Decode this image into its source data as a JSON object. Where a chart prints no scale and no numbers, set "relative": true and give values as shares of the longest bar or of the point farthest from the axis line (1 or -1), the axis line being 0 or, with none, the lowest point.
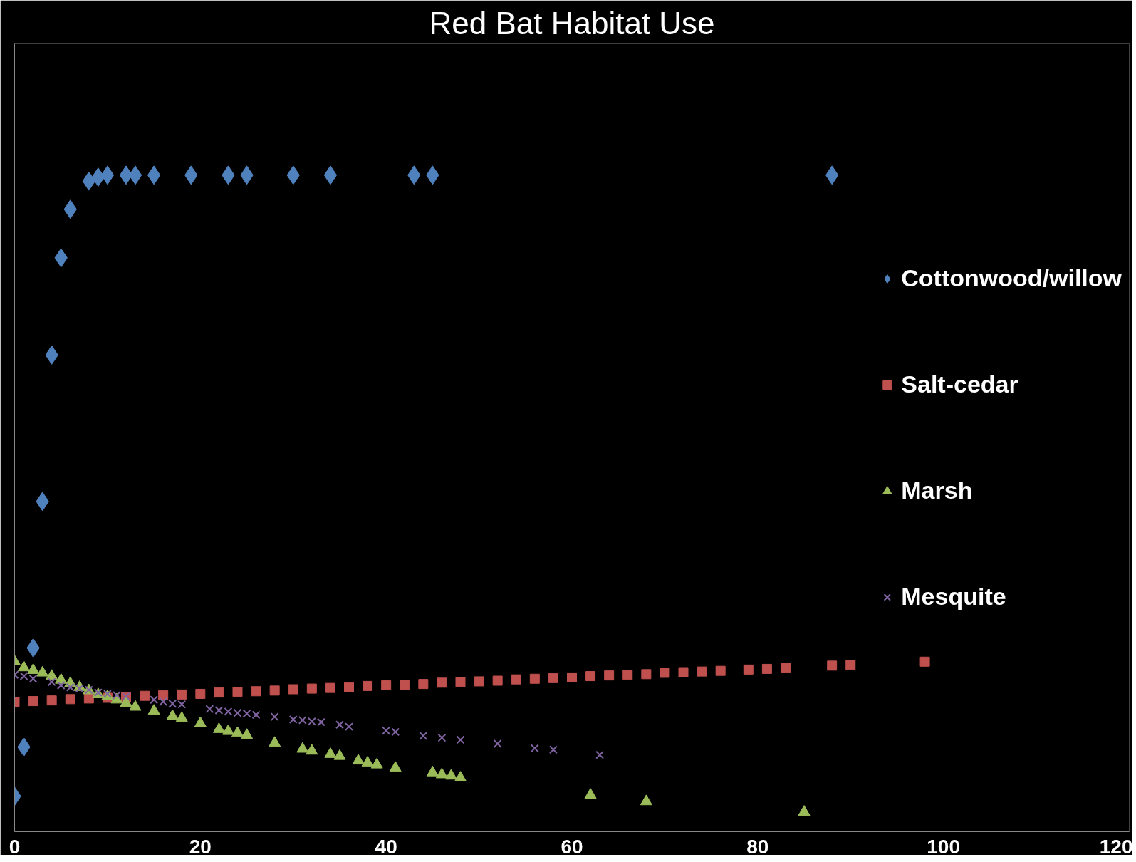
{
  "chart_data": {
    "type": "scatter",
    "title": "Red Bat Habitat Use",
    "relative": true,
    "xlim": [
      0,
      120
    ],
    "xticks": [
      0,
      20,
      40,
      60,
      80,
      100,
      120
    ],
    "tick_labels": "x",
    "grid": false,
    "legend": "right",
    "series": [
      {
        "name": "Cottonwood/willow",
        "color": "#4f81bd",
        "marker": "diamond",
        "x": [
          0,
          1,
          2,
          3,
          4,
          5,
          6,
          8,
          9,
          10,
          12,
          13,
          15,
          19,
          23,
          25,
          30,
          34,
          43,
          45,
          88
        ],
        "values": [
          0.054,
          0.129,
          0.28,
          0.503,
          0.726,
          0.874,
          0.948,
          0.991,
          0.997,
          1,
          1,
          1,
          1,
          1,
          1,
          1,
          1,
          1,
          1,
          1,
          1
        ]
      },
      {
        "name": "Salt-cedar",
        "color": "#c0504d",
        "marker": "square",
        "x": [
          0,
          2,
          4,
          6,
          8,
          10,
          12,
          14,
          16,
          18,
          20,
          22,
          24,
          26,
          28,
          30,
          32,
          34,
          36,
          38,
          40,
          42,
          44,
          46,
          48,
          50,
          52,
          54,
          56,
          58,
          60,
          62,
          64,
          66,
          68,
          70,
          72,
          74,
          76,
          79,
          81,
          83,
          88,
          90,
          98
        ],
        "values": [
          0.198,
          0.199,
          0.2,
          0.202,
          0.203,
          0.204,
          0.205,
          0.207,
          0.208,
          0.209,
          0.21,
          0.212,
          0.213,
          0.214,
          0.215,
          0.217,
          0.218,
          0.219,
          0.22,
          0.222,
          0.223,
          0.224,
          0.225,
          0.227,
          0.228,
          0.229,
          0.23,
          0.232,
          0.233,
          0.234,
          0.235,
          0.237,
          0.238,
          0.239,
          0.24,
          0.242,
          0.243,
          0.244,
          0.245,
          0.247,
          0.248,
          0.25,
          0.253,
          0.254,
          0.259
        ]
      },
      {
        "name": "Marsh",
        "color": "#9bbb59",
        "marker": "triangle",
        "x": [
          0,
          1,
          2,
          3,
          4,
          5,
          6,
          7,
          8,
          9,
          10,
          11,
          12,
          13,
          15,
          17,
          18,
          20,
          22,
          23,
          24,
          25,
          28,
          31,
          32,
          34,
          35,
          37,
          38,
          39,
          41,
          45,
          46,
          47,
          48,
          62,
          68,
          85
        ],
        "values": [
          0.259,
          0.25,
          0.246,
          0.242,
          0.237,
          0.231,
          0.226,
          0.22,
          0.215,
          0.209,
          0.206,
          0.201,
          0.196,
          0.19,
          0.184,
          0.176,
          0.173,
          0.165,
          0.156,
          0.153,
          0.15,
          0.147,
          0.135,
          0.126,
          0.123,
          0.118,
          0.115,
          0.108,
          0.105,
          0.102,
          0.097,
          0.09,
          0.087,
          0.085,
          0.082,
          0.056,
          0.046,
          0.03
        ]
      },
      {
        "name": "Mesquite",
        "color": "#8064a2",
        "marker": "cross",
        "x": [
          0,
          1,
          2,
          4,
          5,
          6,
          7,
          8,
          9,
          10,
          11,
          12,
          15,
          16,
          17,
          18,
          21,
          22,
          23,
          24,
          25,
          26,
          28,
          30,
          31,
          32,
          33,
          35,
          36,
          40,
          41,
          44,
          46,
          48,
          52,
          56,
          58,
          63
        ],
        "values": [
          0.239,
          0.237,
          0.233,
          0.228,
          0.223,
          0.22,
          0.218,
          0.216,
          0.212,
          0.21,
          0.208,
          0.206,
          0.201,
          0.198,
          0.195,
          0.194,
          0.187,
          0.185,
          0.183,
          0.181,
          0.18,
          0.178,
          0.175,
          0.171,
          0.17,
          0.168,
          0.167,
          0.163,
          0.16,
          0.154,
          0.152,
          0.146,
          0.143,
          0.14,
          0.134,
          0.127,
          0.125,
          0.117
        ]
      }
    ]
  }
}
